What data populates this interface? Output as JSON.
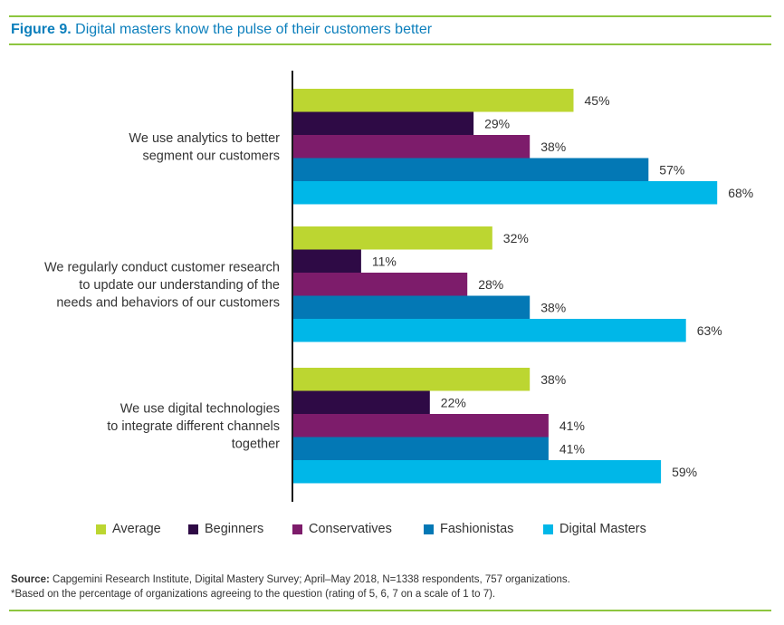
{
  "title": {
    "prefix": "Figure 9.",
    "text": " Digital masters know the pulse of their customers better"
  },
  "colors": {
    "rule": "#8dc63f",
    "title": "#0c7fbc",
    "Average": "#bcd631",
    "Beginners": "#2e0a45",
    "Conservatives": "#7d1c6b",
    "Fashionistas": "#0378b5",
    "Digital Masters": "#00b7e8"
  },
  "chart_data": {
    "type": "bar",
    "orientation": "horizontal",
    "categories": [
      [
        "We use analytics to better",
        "segment our customers"
      ],
      [
        "We regularly conduct customer research",
        "to update our understanding of the",
        "needs and behaviors of our customers"
      ],
      [
        "We use digital technologies",
        "to integrate different channels",
        "together"
      ]
    ],
    "series": [
      {
        "name": "Average",
        "values": [
          45,
          32,
          38
        ]
      },
      {
        "name": "Beginners",
        "values": [
          29,
          11,
          22
        ]
      },
      {
        "name": "Conservatives",
        "values": [
          38,
          28,
          41
        ]
      },
      {
        "name": "Fashionistas",
        "values": [
          57,
          38,
          41
        ]
      },
      {
        "name": "Digital Masters",
        "values": [
          68,
          63,
          59
        ]
      }
    ],
    "value_suffix": "%",
    "xlim": [
      0,
      75
    ],
    "grid": false,
    "legend": "bottom"
  },
  "source": {
    "label": "Source:",
    "text": " Capgemini Research Institute, Digital Mastery Survey; April–May 2018, N=1338 respondents, 757 organizations.",
    "note": "*Based on the percentage of organizations agreeing to the question (rating of 5, 6, 7 on a scale of 1 to 7)."
  }
}
